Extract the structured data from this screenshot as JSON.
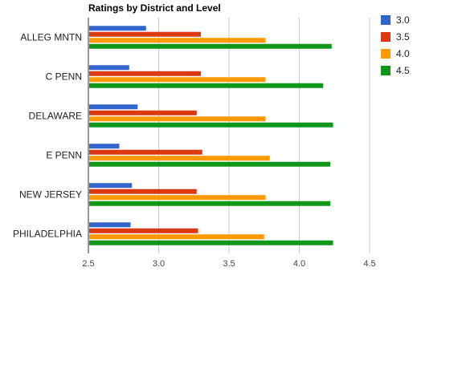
{
  "chart_data": {
    "type": "bar",
    "orientation": "horizontal",
    "title": "Ratings by District and Level",
    "xlabel": "",
    "ylabel": "",
    "categories": [
      "ALLEG MNTN",
      "C PENN",
      "DELAWARE",
      "E PENN",
      "NEW JERSEY",
      "PHILADELPHIA"
    ],
    "series": [
      {
        "name": "3.0",
        "color": "#3366cc",
        "values": [
          2.91,
          2.79,
          2.85,
          2.72,
          2.81,
          2.8
        ]
      },
      {
        "name": "3.5",
        "color": "#dc3912",
        "values": [
          3.3,
          3.3,
          3.27,
          3.31,
          3.27,
          3.28
        ]
      },
      {
        "name": "4.0",
        "color": "#ff9900",
        "values": [
          3.76,
          3.76,
          3.76,
          3.79,
          3.76,
          3.75
        ]
      },
      {
        "name": "4.5",
        "color": "#109618",
        "values": [
          4.23,
          4.17,
          4.24,
          4.22,
          4.22,
          4.24
        ]
      }
    ],
    "xlim": [
      2.5,
      4.5
    ],
    "xticks": [
      "2.5",
      "3.0",
      "3.5",
      "4.0",
      "4.5"
    ],
    "grid": true,
    "legend_position": "right"
  }
}
